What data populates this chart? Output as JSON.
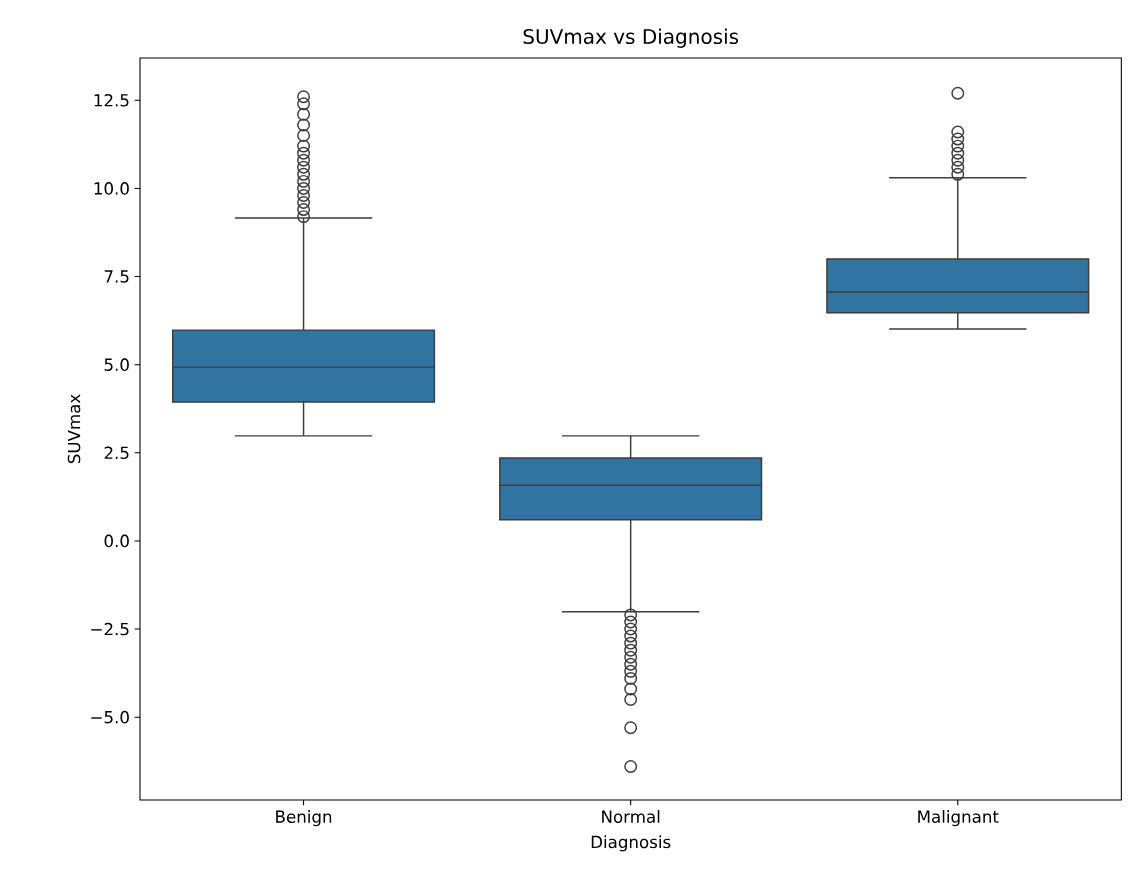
{
  "chart_data": {
    "type": "box",
    "title": "SUVmax vs Diagnosis",
    "xlabel": "Diagnosis",
    "ylabel": "SUVmax",
    "categories": [
      "Benign",
      "Normal",
      "Malignant"
    ],
    "color": "#3274a1",
    "boxes": [
      {
        "low": 2.98,
        "q1": 3.94,
        "median": 4.93,
        "q3": 5.98,
        "high": 9.16,
        "outliers": [
          9.2,
          9.4,
          9.6,
          9.8,
          10.0,
          10.2,
          10.4,
          10.6,
          10.8,
          11.0,
          11.2,
          11.5,
          11.8,
          12.1,
          12.4,
          12.6
        ]
      },
      {
        "low": -2.01,
        "q1": 0.6,
        "median": 1.58,
        "q3": 2.35,
        "high": 2.98,
        "outliers": [
          -2.1,
          -2.3,
          -2.5,
          -2.7,
          -2.9,
          -3.1,
          -3.3,
          -3.5,
          -3.7,
          -3.9,
          -4.2,
          -4.5,
          -5.3,
          -6.4
        ]
      },
      {
        "low": 6.01,
        "q1": 6.47,
        "median": 7.06,
        "q3": 8.0,
        "high": 10.3,
        "outliers": [
          10.4,
          10.6,
          10.8,
          11.0,
          11.2,
          11.4,
          11.6,
          12.7
        ]
      }
    ],
    "ylim": [
      -7.35,
      13.7
    ],
    "yticks": [
      {
        "value": -5,
        "label": "−5.0"
      },
      {
        "value": -2.5,
        "label": "−2.5"
      },
      {
        "value": 0,
        "label": "0.0"
      },
      {
        "value": 2.5,
        "label": "2.5"
      },
      {
        "value": 5,
        "label": "5.0"
      },
      {
        "value": 7.5,
        "label": "7.5"
      },
      {
        "value": 10,
        "label": "10.0"
      },
      {
        "value": 12.5,
        "label": "12.5"
      }
    ]
  }
}
